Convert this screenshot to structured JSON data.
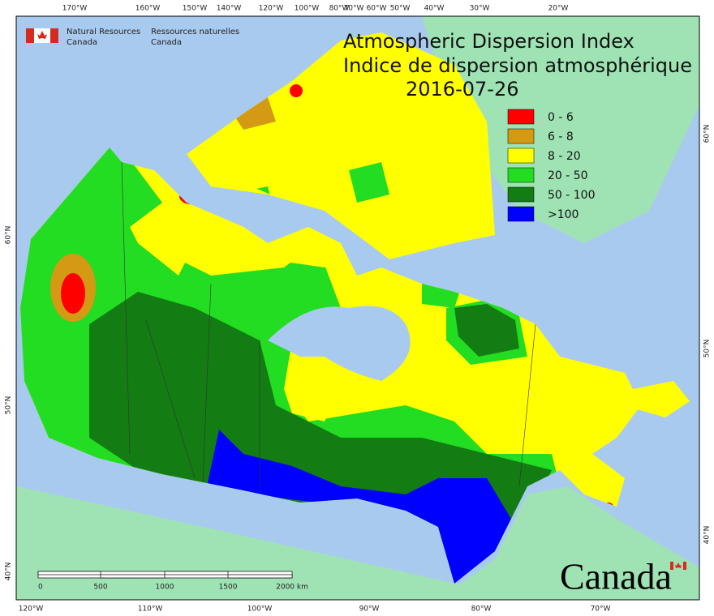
{
  "header": {
    "title_en": "Atmospheric Dispersion Index",
    "title_fr": "Indice de dispersion atmosphérique",
    "date": "2016-07-26"
  },
  "agency": {
    "en": [
      "Natural Resources",
      "Canada"
    ],
    "fr": [
      "Ressources naturelles",
      "Canada"
    ]
  },
  "legend": [
    {
      "label": "0 - 6",
      "color": "#ff0000"
    },
    {
      "label": "6 - 8",
      "color": "#d49a14"
    },
    {
      "label": "8 - 20",
      "color": "#ffff00"
    },
    {
      "label": "20 - 50",
      "color": "#22dd22"
    },
    {
      "label": "50 - 100",
      "color": "#137d13"
    },
    {
      "label": ">100",
      "color": "#0000ff"
    }
  ],
  "top_labels": [
    "170°W",
    "160°W",
    "150°W",
    "140°W",
    "120°W",
    "100°W",
    "80°W",
    "70°W",
    "60°W",
    "50°W",
    "40°W",
    "30°W",
    "20°W"
  ],
  "bottom_labels": [
    "120°W",
    "110°W",
    "100°W",
    "90°W",
    "80°W",
    "70°W"
  ],
  "left_labels": [
    "60°N",
    "50°N",
    "40°N"
  ],
  "right_labels": [
    "60°N",
    "50°N",
    "40°N"
  ],
  "scale": [
    "0",
    "500",
    "1000",
    "1500",
    "2000 km"
  ],
  "wordmark": "Canada"
}
